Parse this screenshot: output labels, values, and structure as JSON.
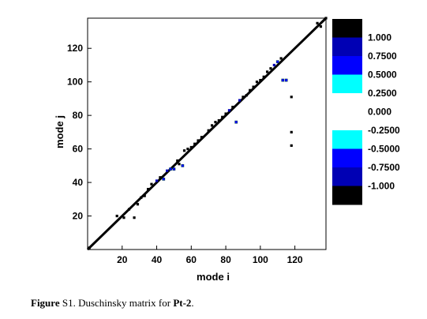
{
  "chart_data": {
    "type": "heatmap",
    "title": "",
    "xlabel": "mode i",
    "ylabel": "mode j",
    "xlim": [
      0,
      138
    ],
    "ylim": [
      0,
      138
    ],
    "x_ticks": [
      20,
      40,
      60,
      80,
      100,
      120
    ],
    "y_ticks": [
      20,
      40,
      60,
      80,
      100,
      120
    ],
    "grid": false,
    "colorbar": {
      "position": "right",
      "levels": [
        {
          "label": "1.000",
          "color": "#000000"
        },
        {
          "label": "0.7500",
          "color": "#0000b4"
        },
        {
          "label": "0.5000",
          "color": "#0000ff"
        },
        {
          "label": "0.2500",
          "color": "#00ffff"
        },
        {
          "label": "0.000",
          "color": "#ffffff"
        },
        {
          "label": "-0.2500",
          "color": "#ffffff"
        },
        {
          "label": "-0.5000",
          "color": "#00ffff"
        },
        {
          "label": "-0.7500",
          "color": "#0000ff"
        },
        {
          "label": "-1.000",
          "color": "#0000b4"
        }
      ],
      "bottom_color": "#000000"
    },
    "points": [
      {
        "x": 1,
        "y": 1,
        "v": 1
      },
      {
        "x": 138,
        "y": 138,
        "v": 1
      },
      {
        "x": 17,
        "y": 20,
        "v": 1
      },
      {
        "x": 21,
        "y": 19,
        "v": 1
      },
      {
        "x": 24,
        "y": 24,
        "v": 1
      },
      {
        "x": 27,
        "y": 19,
        "v": 1
      },
      {
        "x": 29,
        "y": 27,
        "v": 1
      },
      {
        "x": 31,
        "y": 31,
        "v": 1
      },
      {
        "x": 33,
        "y": 32,
        "v": 1
      },
      {
        "x": 35,
        "y": 36,
        "v": 1
      },
      {
        "x": 37,
        "y": 39,
        "v": 1
      },
      {
        "x": 40,
        "y": 41,
        "v": 0.75
      },
      {
        "x": 42,
        "y": 43,
        "v": 1
      },
      {
        "x": 44,
        "y": 42,
        "v": 0.3
      },
      {
        "x": 46,
        "y": 47,
        "v": 0.75
      },
      {
        "x": 48,
        "y": 48,
        "v": 0.3
      },
      {
        "x": 50,
        "y": 48,
        "v": 0.3
      },
      {
        "x": 52,
        "y": 53,
        "v": 1
      },
      {
        "x": 53,
        "y": 51,
        "v": 1
      },
      {
        "x": 55,
        "y": 50,
        "v": 0.3
      },
      {
        "x": 56,
        "y": 59,
        "v": 1
      },
      {
        "x": 58,
        "y": 60,
        "v": 1
      },
      {
        "x": 60,
        "y": 61,
        "v": 1
      },
      {
        "x": 62,
        "y": 63,
        "v": 1
      },
      {
        "x": 64,
        "y": 65,
        "v": 1
      },
      {
        "x": 66,
        "y": 67,
        "v": 1
      },
      {
        "x": 70,
        "y": 71,
        "v": 1
      },
      {
        "x": 72,
        "y": 74,
        "v": 1
      },
      {
        "x": 74,
        "y": 76,
        "v": 1
      },
      {
        "x": 76,
        "y": 77,
        "v": 1
      },
      {
        "x": 78,
        "y": 79,
        "v": 1
      },
      {
        "x": 80,
        "y": 81,
        "v": 1
      },
      {
        "x": 82,
        "y": 83,
        "v": 0.75
      },
      {
        "x": 84,
        "y": 85,
        "v": 1
      },
      {
        "x": 86,
        "y": 76,
        "v": 0.3
      },
      {
        "x": 88,
        "y": 89,
        "v": 0.75
      },
      {
        "x": 90,
        "y": 91,
        "v": 1
      },
      {
        "x": 92,
        "y": 92,
        "v": 1
      },
      {
        "x": 94,
        "y": 95,
        "v": 1
      },
      {
        "x": 96,
        "y": 97,
        "v": 1
      },
      {
        "x": 98,
        "y": 100,
        "v": 1
      },
      {
        "x": 100,
        "y": 101,
        "v": 1
      },
      {
        "x": 102,
        "y": 103,
        "v": 1
      },
      {
        "x": 104,
        "y": 106,
        "v": 1
      },
      {
        "x": 106,
        "y": 108,
        "v": 1
      },
      {
        "x": 108,
        "y": 110,
        "v": 0.75
      },
      {
        "x": 110,
        "y": 112,
        "v": 0.3
      },
      {
        "x": 113,
        "y": 101,
        "v": 0.3
      },
      {
        "x": 115,
        "y": 101,
        "v": 0.3
      },
      {
        "x": 112,
        "y": 114,
        "v": 1
      },
      {
        "x": 118,
        "y": 91,
        "v": 1
      },
      {
        "x": 118,
        "y": 70,
        "v": 1
      },
      {
        "x": 118,
        "y": 62,
        "v": 1
      },
      {
        "x": 133,
        "y": 135,
        "v": 1
      },
      {
        "x": 135,
        "y": 133,
        "v": 1
      }
    ]
  },
  "caption": {
    "label": "Figure",
    "number": " S1",
    "text": ". Duschinsky matrix for ",
    "compound": "Pt-2",
    "end": "."
  }
}
